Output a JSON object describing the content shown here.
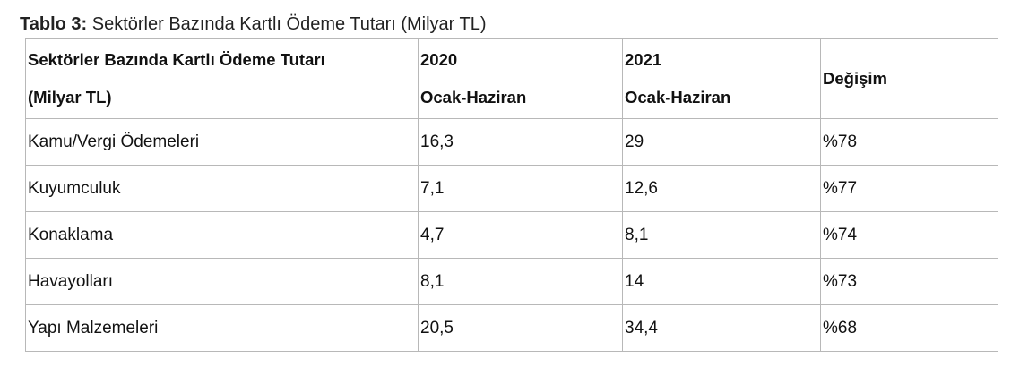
{
  "caption": {
    "label": "Tablo 3:",
    "text": " Sektörler Bazında Kartlı Ödeme Tutarı (Milyar TL)"
  },
  "table": {
    "headers": [
      [
        "Sektörler Bazında Kartlı Ödeme Tutarı",
        "(Milyar TL)"
      ],
      [
        "2020",
        "Ocak-Haziran"
      ],
      [
        "2021",
        "Ocak-Haziran"
      ],
      [
        "Değişim"
      ]
    ],
    "rows": [
      [
        "Kamu/Vergi Ödemeleri",
        "16,3",
        "29",
        "%78"
      ],
      [
        "Kuyumculuk",
        "7,1",
        "12,6",
        "%77"
      ],
      [
        "Konaklama",
        "4,7",
        "8,1",
        "%74"
      ],
      [
        "Havayolları",
        "8,1",
        "14",
        "%73"
      ],
      [
        "Yapı Malzemeleri",
        "20,5",
        "34,4",
        "%68"
      ]
    ]
  }
}
